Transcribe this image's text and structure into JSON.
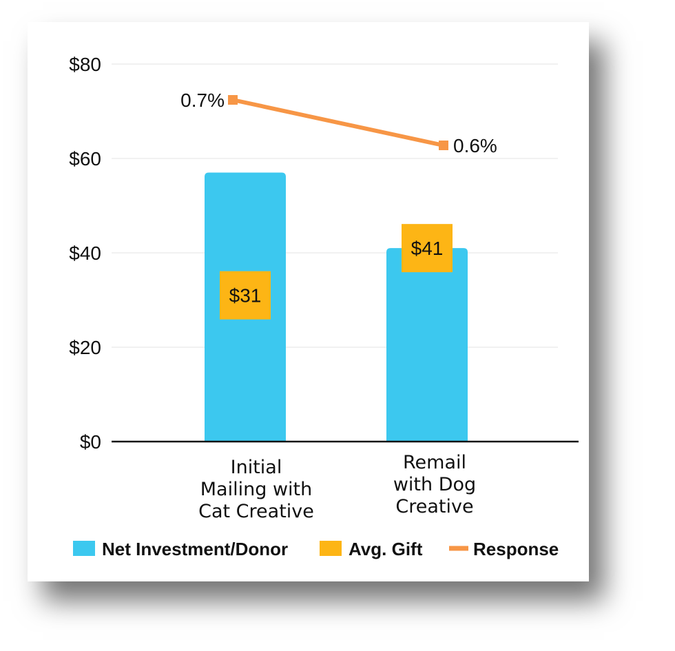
{
  "chart_data": {
    "type": "bar",
    "categories": [
      "Initial Mailing with Cat Creative",
      "Remail with Dog Creative"
    ],
    "category_lines": [
      [
        "Initial",
        "Mailing with",
        "Cat Creative"
      ],
      [
        "Remail",
        "with Dog",
        "Creative"
      ]
    ],
    "series": [
      {
        "name": "Net Investment/Donor",
        "type": "bar",
        "color": "#3CC8EF",
        "values": [
          57,
          41
        ]
      },
      {
        "name": "Avg. Gift",
        "type": "marker",
        "color": "#FDB515",
        "values": [
          31,
          41
        ],
        "labels": [
          "$31",
          "$41"
        ]
      },
      {
        "name": "Response",
        "type": "line",
        "color": "#F79646",
        "values": [
          0.7,
          0.6
        ],
        "labels": [
          "0.7%",
          "0.6%"
        ]
      }
    ],
    "ylim": [
      0,
      80
    ],
    "yticks": [
      0,
      20,
      40,
      60,
      80
    ],
    "ytick_labels": [
      "$0",
      "$20",
      "$40",
      "$60",
      "$80"
    ],
    "grid": true,
    "legend": "bottom"
  }
}
